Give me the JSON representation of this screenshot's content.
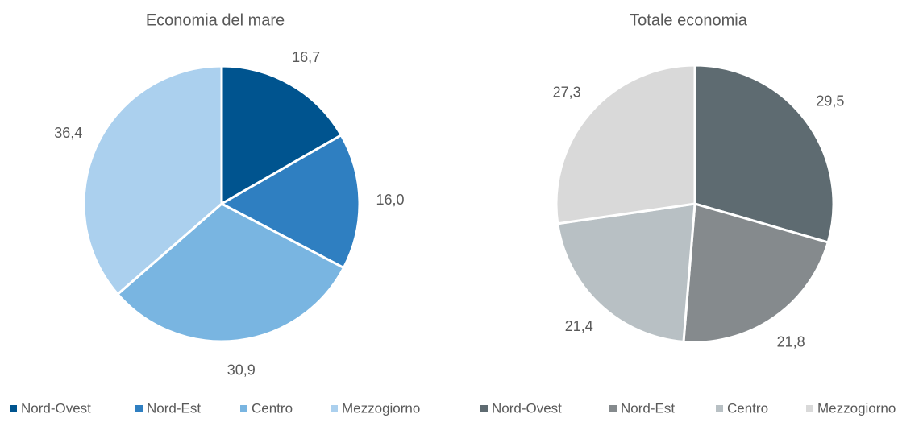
{
  "chart_data": [
    {
      "type": "pie",
      "title": "Economia del mare",
      "categories": [
        "Nord-Ovest",
        "Nord-Est",
        "Centro",
        "Mezzogiorno"
      ],
      "values": [
        16.7,
        16.0,
        30.9,
        36.4
      ],
      "value_labels": [
        "16,7",
        "16,0",
        "30,9",
        "36,4"
      ],
      "colors": [
        "#00548f",
        "#2f7fc1",
        "#79b5e1",
        "#abd0ee"
      ]
    },
    {
      "type": "pie",
      "title": "Totale economia",
      "categories": [
        "Nord-Ovest",
        "Nord-Est",
        "Centro",
        "Mezzogiorno"
      ],
      "values": [
        29.5,
        21.8,
        21.4,
        27.3
      ],
      "value_labels": [
        "29,5",
        "21,8",
        "21,4",
        "27,3"
      ],
      "colors": [
        "#5e6b71",
        "#858a8d",
        "#b8c0c4",
        "#d9d9d9"
      ]
    }
  ]
}
